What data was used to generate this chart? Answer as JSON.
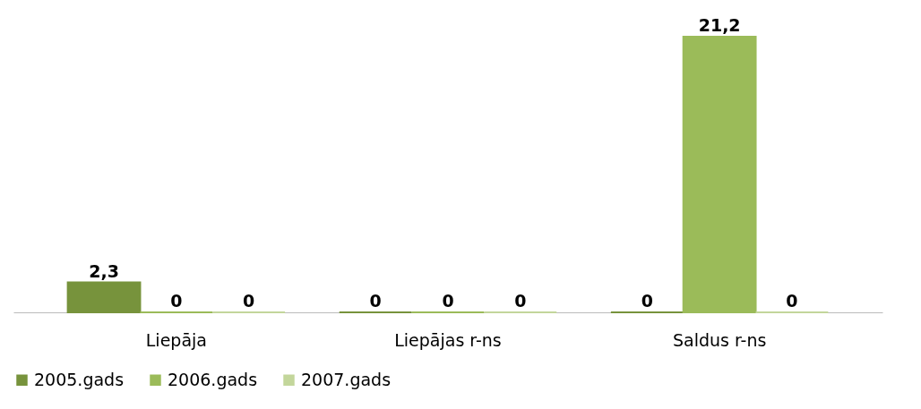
{
  "chart_data": {
    "type": "bar",
    "categories": [
      "Liepāja",
      "Liepājas r-ns",
      "Saldus r-ns"
    ],
    "series": [
      {
        "name": "2005.gads",
        "color": "#77933c",
        "values": [
          2.3,
          0,
          0
        ],
        "value_labels": [
          "2,3",
          "0",
          "0"
        ]
      },
      {
        "name": "2006.gads",
        "color": "#9bbb59",
        "values": [
          0,
          0,
          21.2
        ],
        "value_labels": [
          "0",
          "0",
          "21,2"
        ]
      },
      {
        "name": "2007.gads",
        "color": "#c3d69b",
        "values": [
          0,
          0,
          0
        ],
        "value_labels": [
          "0",
          "0",
          "0"
        ]
      }
    ],
    "legend": "bottom"
  }
}
